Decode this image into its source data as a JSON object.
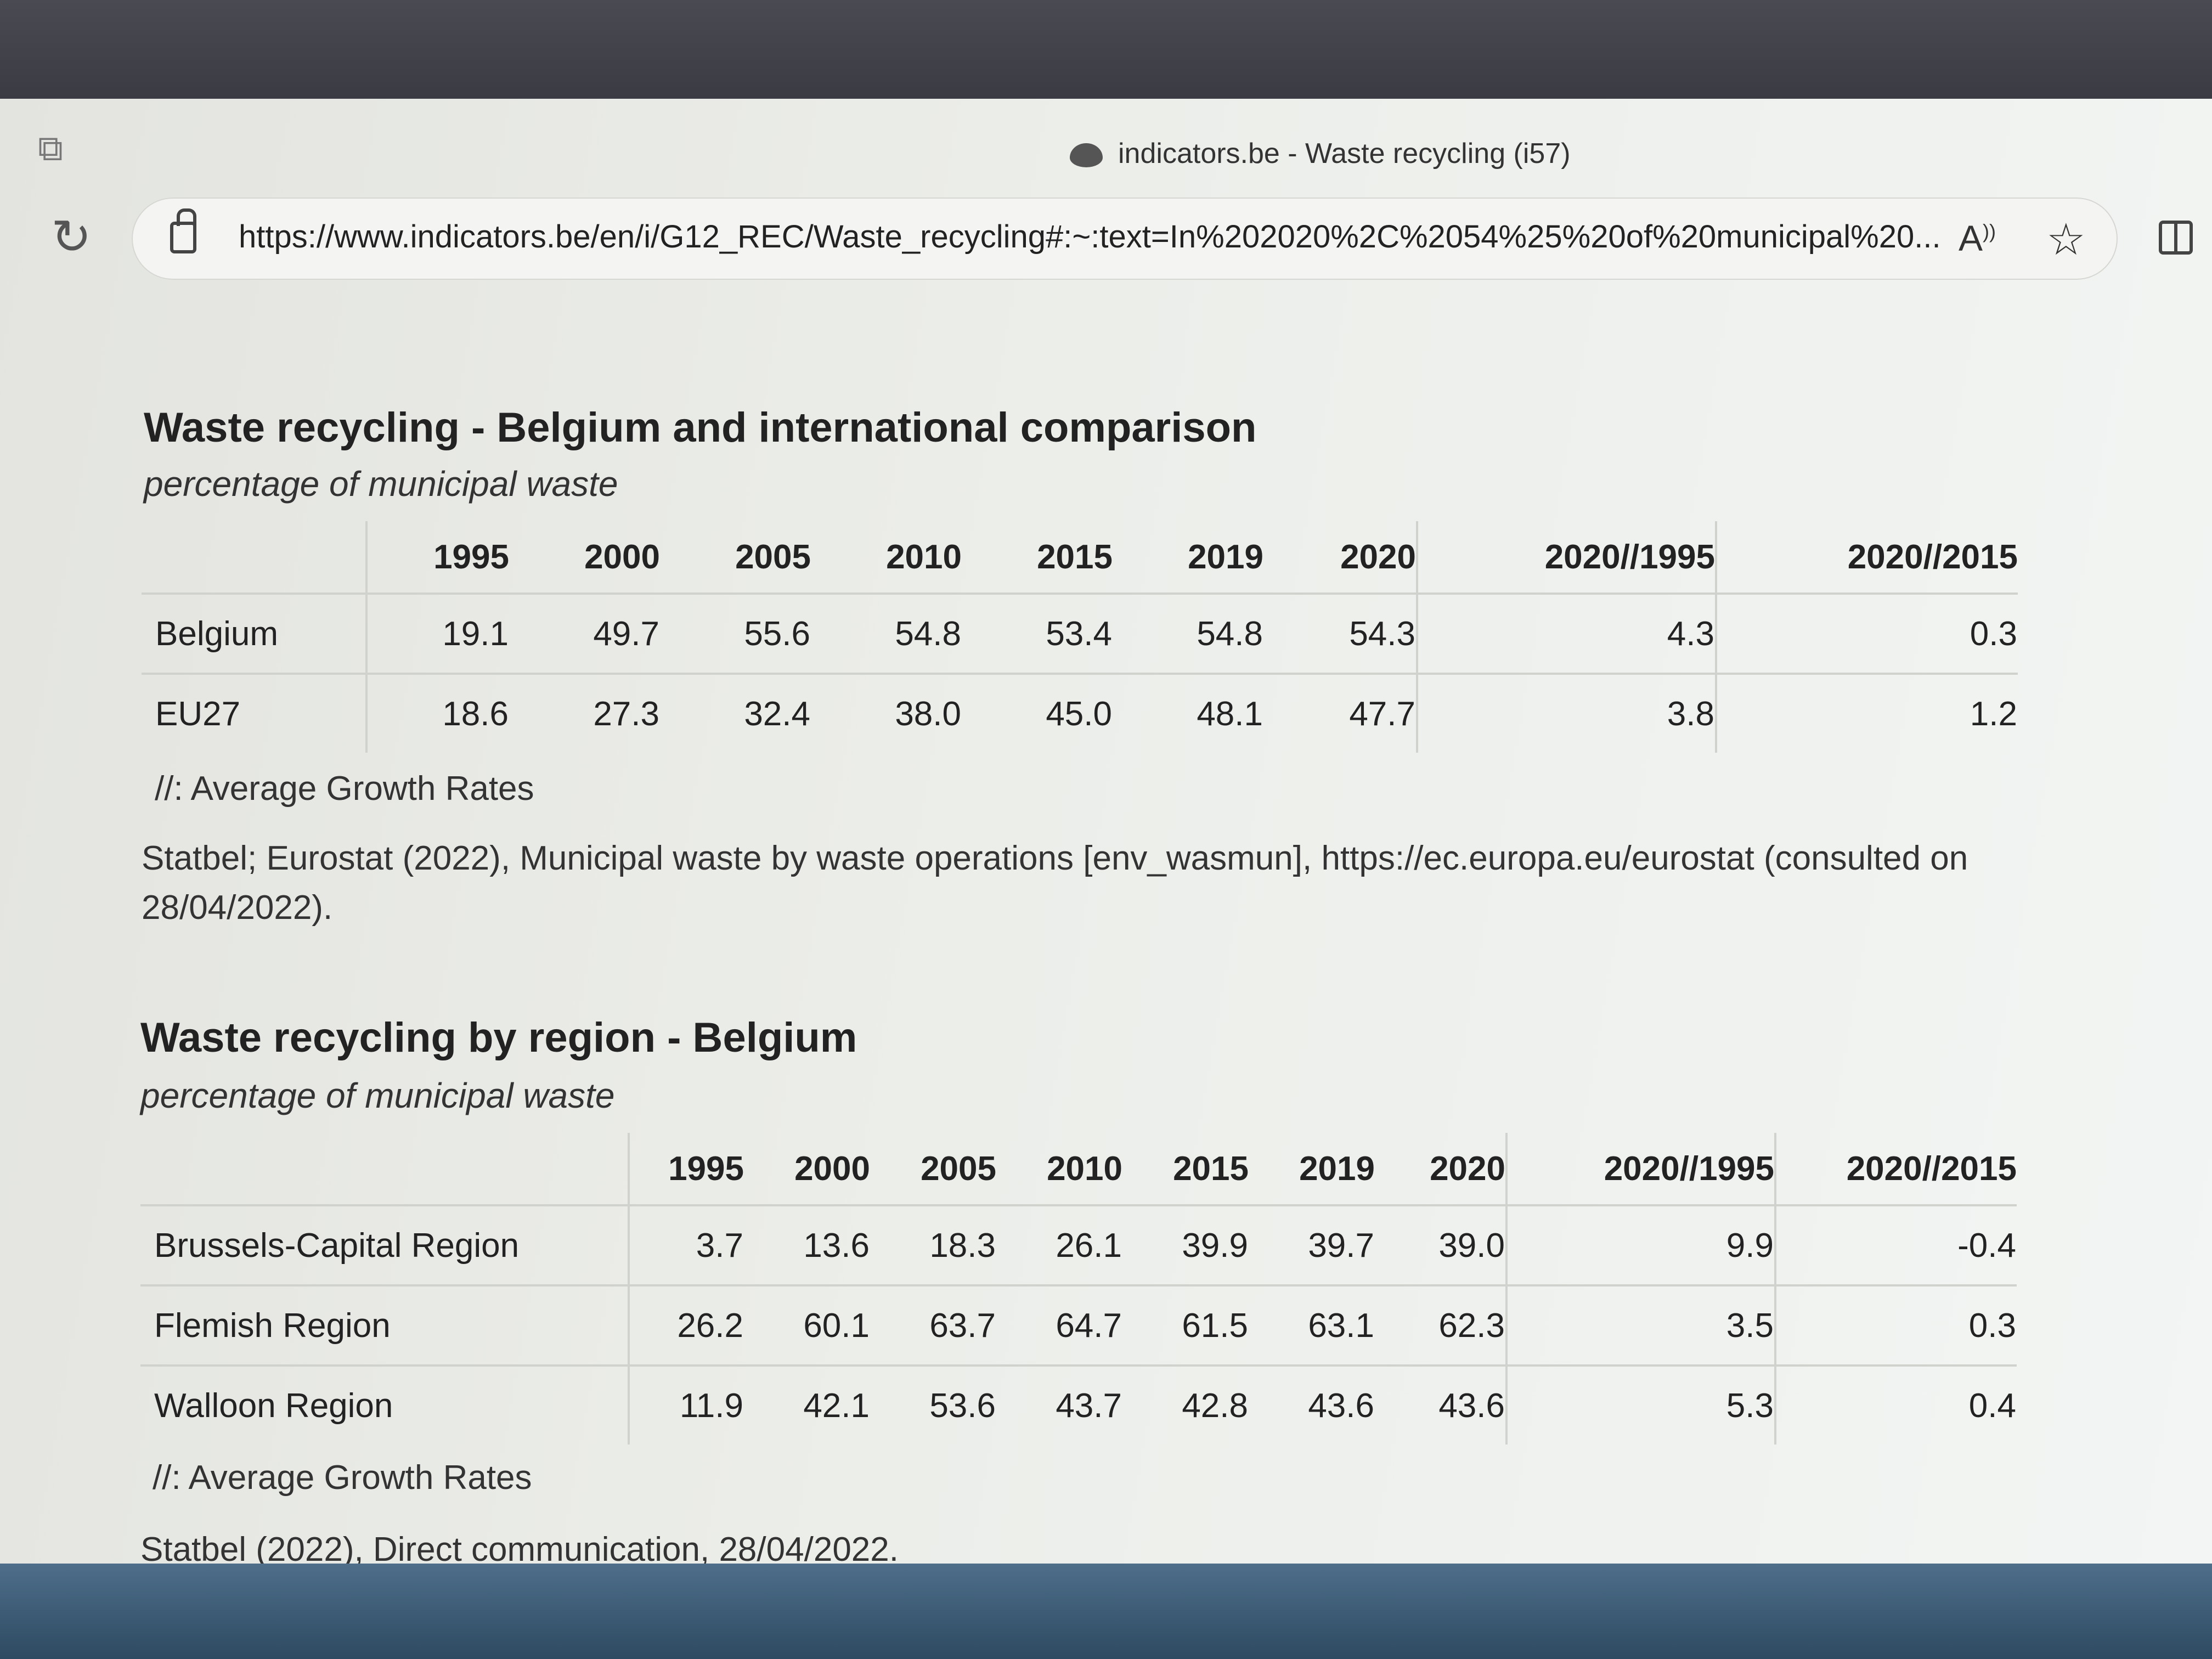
{
  "browser": {
    "window_title": "indicators.be - Waste recycling (i57)",
    "url": "https://www.indicators.be/en/i/G12_REC/Waste_recycling#:~:text=In%202020%2C%2054%25%20of%20municipal%20...",
    "icons": [
      "tabs-icon",
      "reload-icon",
      "lock-icon",
      "read-aloud-icon",
      "favorite-star-icon",
      "split-screen-icon"
    ]
  },
  "table1": {
    "title": "Waste recycling - Belgium and international comparison",
    "subtitle": "percentage of municipal waste",
    "columns": [
      "1995",
      "2000",
      "2005",
      "2010",
      "2015",
      "2019",
      "2020",
      "2020//1995",
      "2020//2015"
    ],
    "rows": [
      {
        "label": "Belgium",
        "values": [
          "19.1",
          "49.7",
          "55.6",
          "54.8",
          "53.4",
          "54.8",
          "54.3",
          "4.3",
          "0.3"
        ]
      },
      {
        "label": "EU27",
        "values": [
          "18.6",
          "27.3",
          "32.4",
          "38.0",
          "45.0",
          "48.1",
          "47.7",
          "3.8",
          "1.2"
        ]
      }
    ],
    "note": "//: Average Growth Rates",
    "source": "Statbel; Eurostat (2022), Municipal waste by waste operations [env_wasmun], https://ec.europa.eu/eurostat (consulted on 28/04/2022)."
  },
  "table2": {
    "title": "Waste recycling by region - Belgium",
    "subtitle": "percentage of municipal waste",
    "columns": [
      "1995",
      "2000",
      "2005",
      "2010",
      "2015",
      "2019",
      "2020",
      "2020//1995",
      "2020//2015"
    ],
    "rows": [
      {
        "label": "Brussels-Capital Region",
        "values": [
          "3.7",
          "13.6",
          "18.3",
          "26.1",
          "39.9",
          "39.7",
          "39.0",
          "9.9",
          "-0.4"
        ]
      },
      {
        "label": "Flemish Region",
        "values": [
          "26.2",
          "60.1",
          "63.7",
          "64.7",
          "61.5",
          "63.1",
          "62.3",
          "3.5",
          "0.3"
        ]
      },
      {
        "label": "Walloon Region",
        "values": [
          "11.9",
          "42.1",
          "53.6",
          "43.7",
          "42.8",
          "43.6",
          "43.6",
          "5.3",
          "0.4"
        ]
      }
    ],
    "note": "//: Average Growth Rates",
    "source": "Statbel (2022), Direct communication, 28/04/2022."
  }
}
